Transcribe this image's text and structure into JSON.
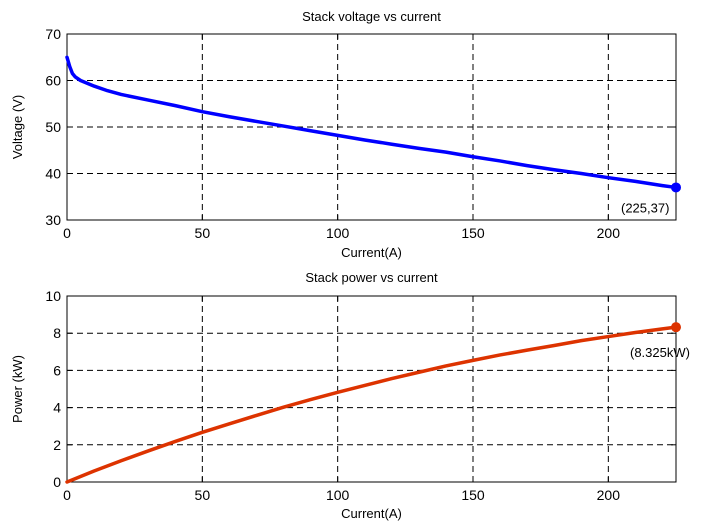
{
  "chart_data": [
    {
      "type": "line",
      "title": "Stack voltage vs current",
      "xlabel": "Current(A)",
      "ylabel": "Voltage (V)",
      "xlim": [
        0,
        225
      ],
      "ylim": [
        30,
        70
      ],
      "xticks": [
        0,
        50,
        100,
        150,
        200
      ],
      "yticks": [
        30,
        40,
        50,
        60,
        70
      ],
      "grid": true,
      "series": [
        {
          "color": "#0000ff",
          "x": [
            0,
            0.5,
            1,
            2,
            3,
            5,
            10,
            15,
            20,
            30,
            40,
            50,
            60,
            70,
            80,
            90,
            100,
            110,
            120,
            130,
            140,
            150,
            160,
            170,
            180,
            190,
            200,
            210,
            220,
            225
          ],
          "y": [
            65,
            64,
            63,
            61.5,
            60.8,
            60,
            58.8,
            57.8,
            57,
            55.8,
            54.6,
            53.3,
            52.2,
            51.2,
            50.2,
            49.2,
            48.2,
            47.2,
            46.3,
            45.4,
            44.6,
            43.6,
            42.7,
            41.7,
            40.8,
            40.0,
            39.1,
            38.3,
            37.4,
            37
          ]
        }
      ],
      "marker": {
        "x": 225,
        "y": 37,
        "label": "(225,37)"
      }
    },
    {
      "type": "line",
      "title": "Stack power vs current",
      "xlabel": "Current(A)",
      "ylabel": "Power (kW)",
      "xlim": [
        0,
        225
      ],
      "ylim": [
        0,
        10
      ],
      "xticks": [
        0,
        50,
        100,
        150,
        200
      ],
      "yticks": [
        0,
        2,
        4,
        6,
        8,
        10
      ],
      "grid": true,
      "series": [
        {
          "color": "#dd3300",
          "x": [
            0,
            10,
            20,
            30,
            40,
            50,
            60,
            70,
            80,
            90,
            100,
            110,
            120,
            130,
            140,
            150,
            160,
            170,
            180,
            190,
            200,
            210,
            220,
            225
          ],
          "y": [
            0,
            0.59,
            1.14,
            1.67,
            2.18,
            2.67,
            3.13,
            3.58,
            4.02,
            4.43,
            4.82,
            5.19,
            5.56,
            5.9,
            6.24,
            6.54,
            6.83,
            7.09,
            7.34,
            7.6,
            7.82,
            8.04,
            8.23,
            8.325
          ]
        }
      ],
      "marker": {
        "x": 225,
        "y": 8.325,
        "label": "(8.325kW)"
      }
    }
  ]
}
